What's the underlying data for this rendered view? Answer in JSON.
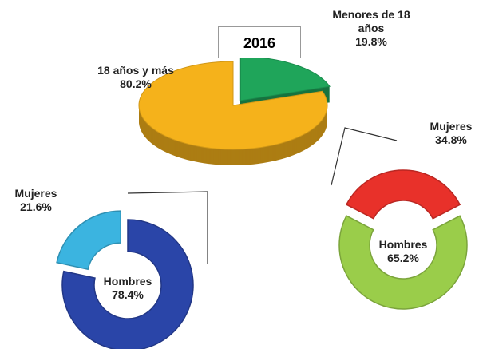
{
  "chart_data": [
    {
      "type": "pie3d",
      "title": "2016",
      "categories": [
        "Menores de 18 años",
        "18 años y más"
      ],
      "values": [
        19.8,
        80.2
      ],
      "value_labels": [
        "19.8%",
        "80.2%"
      ],
      "colors": [
        "#1fa55a",
        "#f5b21b"
      ]
    },
    {
      "type": "doughnut",
      "categories": [
        "Hombres",
        "Mujeres"
      ],
      "values": [
        78.4,
        21.6
      ],
      "value_labels": [
        "78.4%",
        "21.6%"
      ],
      "colors": [
        "#2a45a8",
        "#3bb4e0"
      ]
    },
    {
      "type": "doughnut",
      "categories": [
        "Mujeres",
        "Hombres"
      ],
      "values": [
        34.8,
        65.2
      ],
      "value_labels": [
        "34.8%",
        "65.2%"
      ],
      "colors": [
        "#e8312a",
        "#9acd4a"
      ]
    }
  ]
}
